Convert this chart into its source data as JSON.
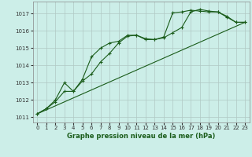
{
  "title": "Graphe pression niveau de la mer (hPa)",
  "background_color": "#cceee8",
  "grid_color": "#b0c8c4",
  "line_color": "#1a5c1a",
  "xlim": [
    -0.5,
    23.5
  ],
  "ylim": [
    1010.7,
    1017.7
  ],
  "xticks": [
    0,
    1,
    2,
    3,
    4,
    5,
    6,
    7,
    8,
    9,
    10,
    11,
    12,
    13,
    14,
    15,
    16,
    17,
    18,
    19,
    20,
    21,
    22,
    23
  ],
  "yticks": [
    1011,
    1012,
    1013,
    1014,
    1015,
    1016,
    1017
  ],
  "line1_x": [
    0,
    1,
    2,
    3,
    4,
    5,
    6,
    7,
    8,
    9,
    10,
    11,
    12,
    13,
    14,
    15,
    16,
    17,
    18,
    19,
    20,
    21,
    22,
    23
  ],
  "line1_y": [
    1011.2,
    1011.5,
    1011.9,
    1012.5,
    1012.5,
    1013.1,
    1013.5,
    1014.2,
    1014.7,
    1015.3,
    1015.7,
    1015.75,
    1015.55,
    1015.5,
    1015.6,
    1015.9,
    1016.2,
    1017.1,
    1017.25,
    1017.15,
    1017.1,
    1016.8,
    1016.5,
    1016.5
  ],
  "line2_x": [
    0,
    1,
    2,
    3,
    4,
    5,
    6,
    7,
    8,
    9,
    10,
    11,
    12,
    13,
    14,
    15,
    16,
    17,
    18,
    19,
    20,
    21,
    22,
    23
  ],
  "line2_y": [
    1011.2,
    1011.5,
    1012.0,
    1013.0,
    1012.5,
    1013.2,
    1014.5,
    1015.0,
    1015.3,
    1015.4,
    1015.75,
    1015.75,
    1015.5,
    1015.5,
    1015.65,
    1017.05,
    1017.1,
    1017.2,
    1017.15,
    1017.1,
    1017.1,
    1016.85,
    1016.5,
    1016.5
  ],
  "line3_x": [
    0,
    23
  ],
  "line3_y": [
    1011.2,
    1016.5
  ],
  "xlabel_fontsize": 6,
  "tick_fontsize": 5
}
